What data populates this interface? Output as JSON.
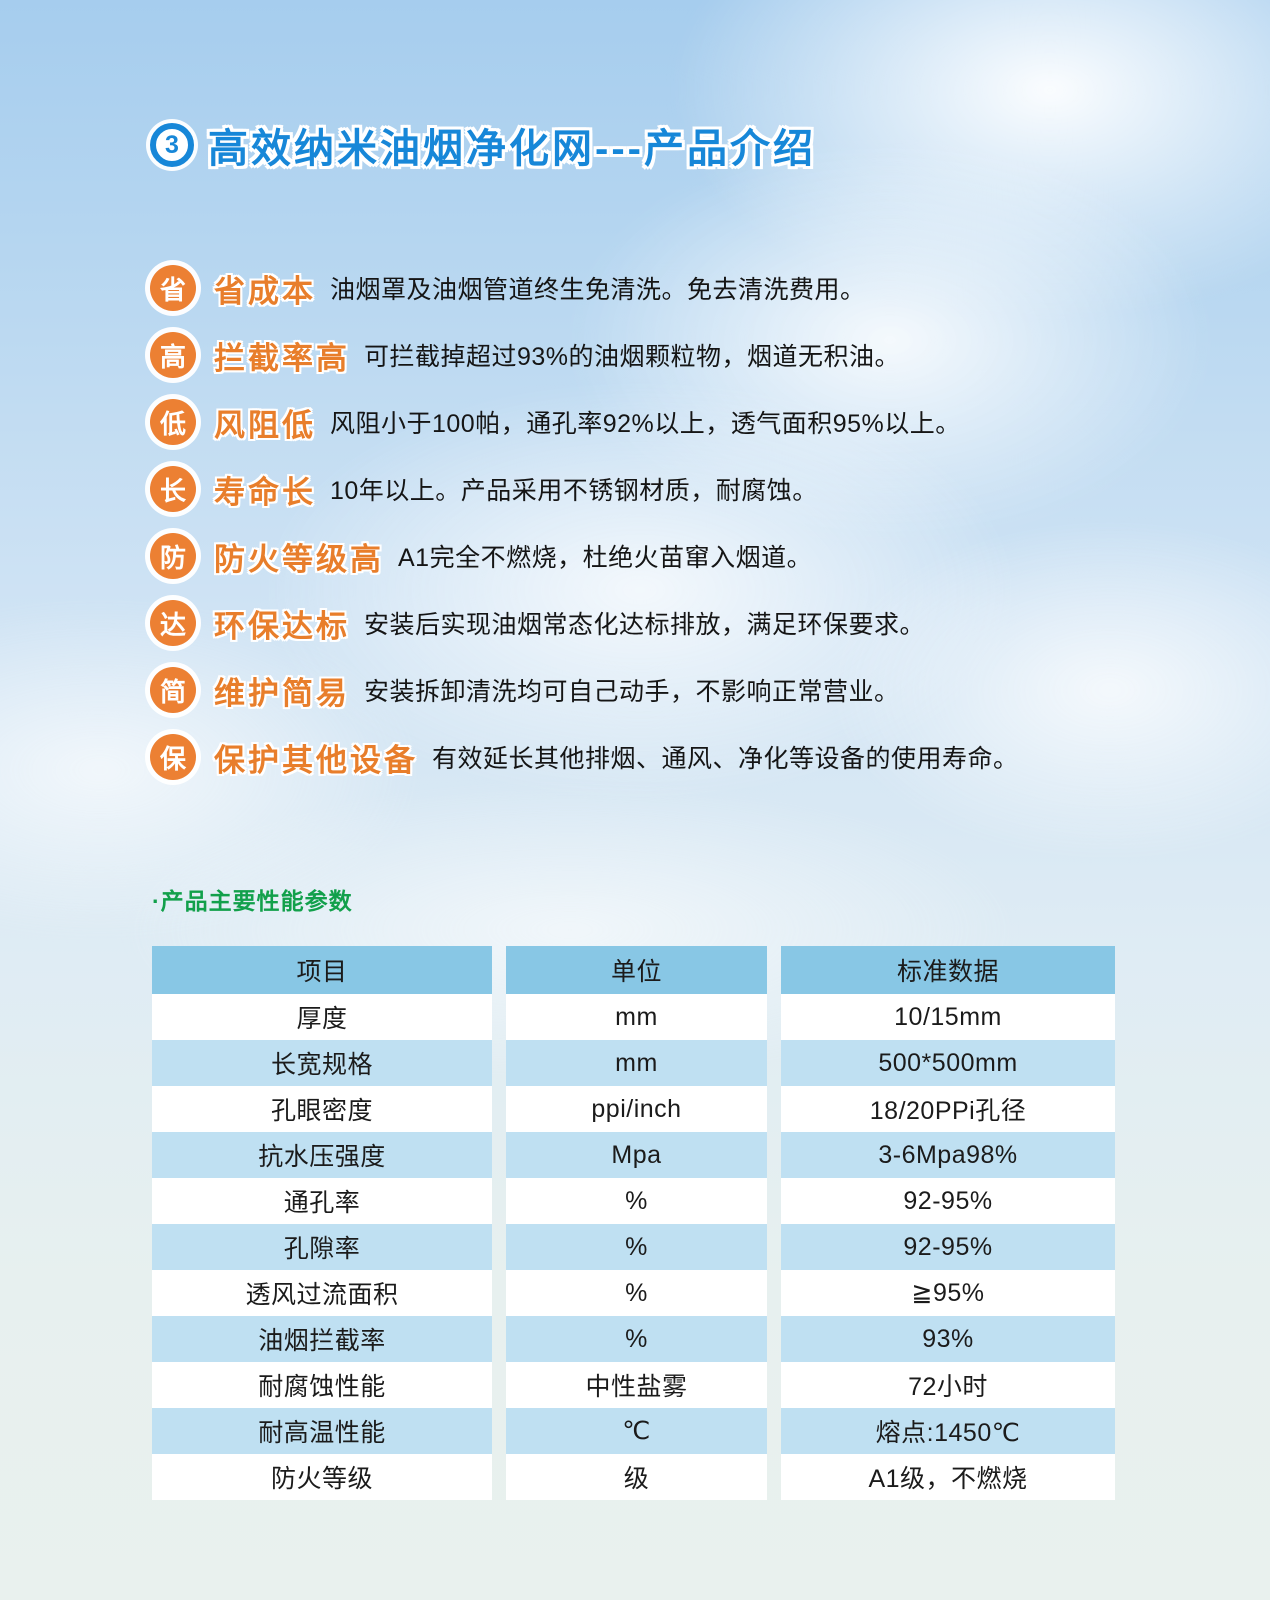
{
  "title": {
    "badge_number": "3",
    "text": "高效纳米油烟净化网---产品介绍"
  },
  "features": [
    {
      "badge": "省",
      "title": "省成本",
      "desc": "油烟罩及油烟管道终生免清洗。免去清洗费用。"
    },
    {
      "badge": "高",
      "title": "拦截率高",
      "desc": "可拦截掉超过93%的油烟颗粒物，烟道无积油。"
    },
    {
      "badge": "低",
      "title": "风阻低",
      "desc": "风阻小于100帕，通孔率92%以上，透气面积95%以上。"
    },
    {
      "badge": "长",
      "title": "寿命长",
      "desc": "10年以上。产品采用不锈钢材质，耐腐蚀。"
    },
    {
      "badge": "防",
      "title": "防火等级高",
      "desc": "A1完全不燃烧，杜绝火苗窜入烟道。"
    },
    {
      "badge": "达",
      "title": "环保达标",
      "desc": "安装后实现油烟常态化达标排放，满足环保要求。"
    },
    {
      "badge": "简",
      "title": "维护简易",
      "desc": "安装拆卸清洗均可自己动手，不影响正常营业。"
    },
    {
      "badge": "保",
      "title": "保护其他设备",
      "desc": "有效延长其他排烟、通风、净化等设备的使用寿命。"
    }
  ],
  "params": {
    "caption": "·产品主要性能参数",
    "table": {
      "headers": [
        "项目",
        "单位",
        "标准数据"
      ],
      "rows": [
        [
          "厚度",
          "mm",
          "10/15mm"
        ],
        [
          "长宽规格",
          "mm",
          "500*500mm"
        ],
        [
          "孔眼密度",
          "ppi/inch",
          "18/20PPi孔径"
        ],
        [
          "抗水压强度",
          "Mpa",
          "3-6Mpa98%"
        ],
        [
          "通孔率",
          "%",
          "92-95%"
        ],
        [
          "孔隙率",
          "%",
          "92-95%"
        ],
        [
          "透风过流面积",
          "%",
          "≧95%"
        ],
        [
          "油烟拦截率",
          "%",
          "93%"
        ],
        [
          "耐腐蚀性能",
          "中性盐雾",
          "72小时"
        ],
        [
          "耐高温性能",
          "℃",
          "熔点:1450℃"
        ],
        [
          "防火等级",
          "级",
          "A1级，不燃烧"
        ]
      ]
    }
  },
  "colors": {
    "title_blue": "#1787d8",
    "accent_orange": "#ec8033",
    "caption_green": "#12a04b",
    "table_header_blue": "#88c7e5",
    "table_row_blue": "#bfe0f2",
    "sky_top": "#a6cdee",
    "sky_bottom": "#e9f1ee"
  }
}
